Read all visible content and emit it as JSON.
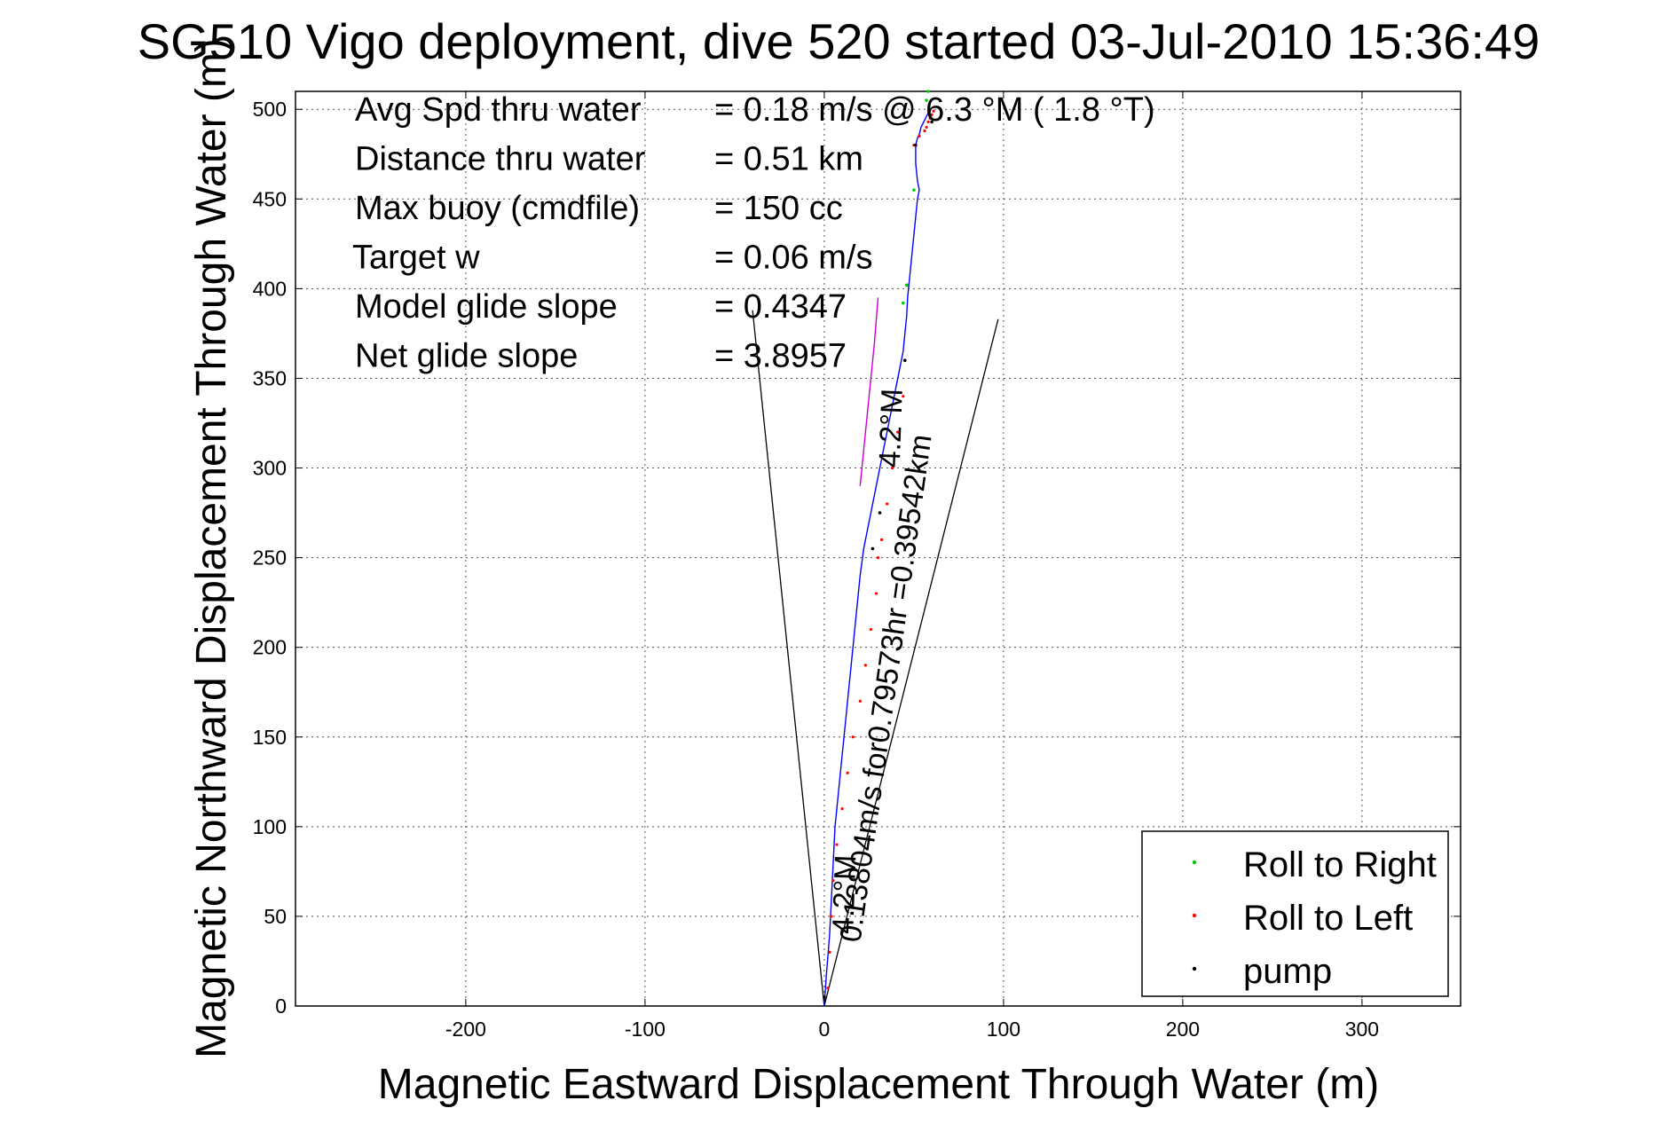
{
  "chart_data": {
    "type": "line",
    "title": "SG510 Vigo deployment, dive 520 started 03-Jul-2010 15:36:49",
    "xlabel": "Magnetic Eastward Displacement Through Water (m)",
    "ylabel": "Magnetic Northward Displacement Through Water (m)",
    "xlim": [
      -295,
      355
    ],
    "ylim": [
      0,
      510
    ],
    "xticks": [
      -200,
      -100,
      0,
      100,
      200,
      300
    ],
    "yticks": [
      0,
      50,
      100,
      150,
      200,
      250,
      300,
      350,
      400,
      450,
      500
    ],
    "grid": true,
    "stats": [
      {
        "label": "Avg Spd thru water",
        "value": "=  0.18 m/s @   6.3 °M (  1.8 °T)"
      },
      {
        "label": "Distance thru water",
        "value": "=  0.51 km"
      },
      {
        "label": "Max buoy (cmdfile)",
        "value": "= 150 cc"
      },
      {
        "label": "Target w",
        "value": "= 0.06 m/s"
      },
      {
        "label": "Model glide slope",
        "value": "= 0.4347"
      },
      {
        "label": "Net glide slope",
        "value": "= 3.8957"
      }
    ],
    "track": {
      "color": "#0000ff",
      "x": [
        0,
        1,
        3,
        4,
        5,
        6,
        8,
        10,
        12,
        14,
        16,
        18,
        20,
        22,
        24,
        26,
        28,
        30,
        32,
        34,
        36,
        38,
        40,
        42,
        44,
        45,
        46,
        46.5,
        47,
        48,
        49,
        50,
        51,
        52,
        53,
        52,
        51,
        51,
        52,
        53,
        54,
        56,
        58,
        58
      ],
      "y": [
        0,
        15,
        40,
        60,
        80,
        100,
        120,
        140,
        160,
        180,
        200,
        220,
        240,
        255,
        265,
        275,
        285,
        295,
        305,
        315,
        325,
        335,
        345,
        355,
        365,
        375,
        385,
        395,
        400,
        410,
        420,
        430,
        440,
        450,
        455,
        460,
        470,
        480,
        484,
        486,
        490,
        494,
        498,
        500
      ]
    },
    "roll_right": {
      "color": "#00cc00",
      "x": [
        58,
        57,
        50,
        46,
        44
      ],
      "y": [
        510,
        505,
        455,
        402,
        392
      ]
    },
    "roll_left": {
      "color": "#ff0000",
      "x": [
        2,
        3,
        4,
        5,
        7,
        10,
        13,
        16,
        20,
        23,
        26,
        29,
        30,
        32,
        35,
        38,
        41,
        44,
        50,
        53,
        56,
        57,
        58,
        59,
        60,
        61
      ],
      "y": [
        10,
        30,
        50,
        70,
        90,
        110,
        130,
        150,
        170,
        190,
        210,
        230,
        250,
        260,
        280,
        300,
        320,
        340,
        480,
        485,
        488,
        490,
        493,
        495,
        497,
        499
      ]
    },
    "roll_left_band": {
      "color": "#cc00cc",
      "x": [
        30,
        28,
        25,
        22,
        20
      ],
      "y": [
        395,
        370,
        340,
        310,
        290
      ]
    },
    "pump": {
      "color": "#000000",
      "x": [
        0,
        27,
        31,
        45,
        51,
        60
      ],
      "y": [
        5,
        255,
        275,
        360,
        480,
        493
      ]
    },
    "guide_lines": [
      {
        "x": [
          0,
          -40
        ],
        "y": [
          0,
          388
        ]
      },
      {
        "x": [
          0,
          97
        ],
        "y": [
          0,
          383
        ]
      }
    ],
    "annotations": [
      {
        "text": "0.13804m/s for0.79573hr =0.39542km",
        "x": 20,
        "y": 35,
        "rotation": -82
      },
      {
        "text": "4.2°M",
        "x": 16,
        "y": 40,
        "rotation": -88
      },
      {
        "text": "4.2°M",
        "x": 42,
        "y": 300,
        "rotation": -88
      }
    ],
    "legend": {
      "placement": "bottom-right",
      "entries": [
        {
          "label": "Roll to Right",
          "color": "#00cc00"
        },
        {
          "label": "Roll to Left",
          "color": "#ff0000"
        },
        {
          "label": "pump",
          "color": "#000000"
        }
      ]
    }
  }
}
